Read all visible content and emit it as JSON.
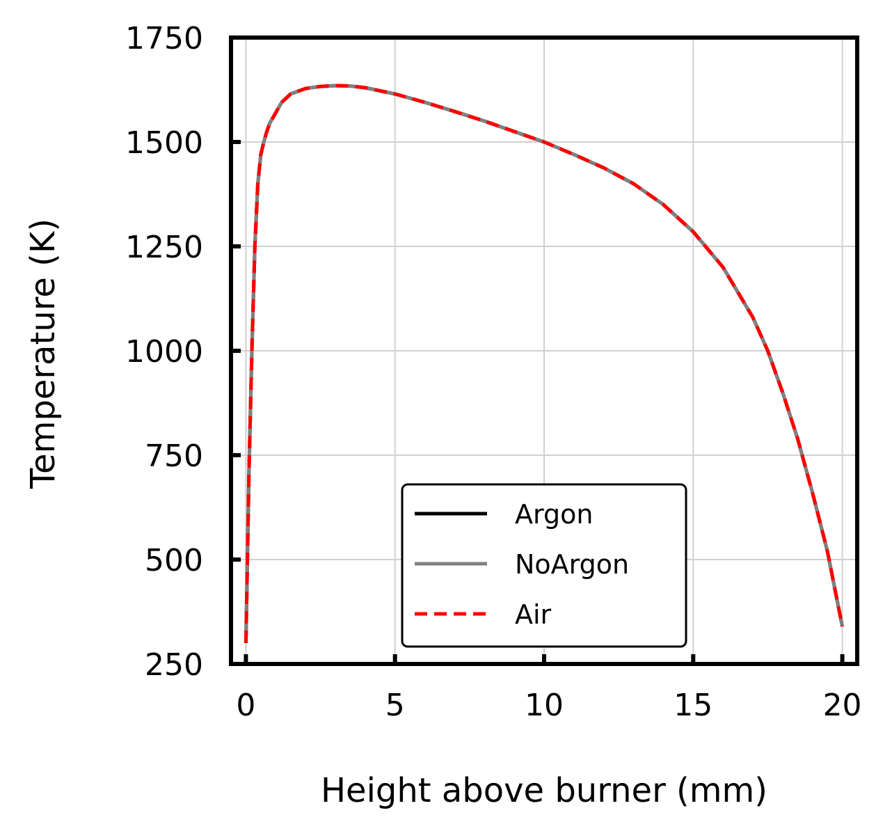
{
  "chart_data": {
    "type": "line",
    "title": "",
    "xlabel": "Height above burner (mm)",
    "ylabel": "Temperature (K)",
    "xlim": [
      0,
      20
    ],
    "ylim": [
      250,
      1750
    ],
    "xticks": [
      0,
      5,
      10,
      15,
      20
    ],
    "yticks": [
      250,
      500,
      750,
      1000,
      1250,
      1500,
      1750
    ],
    "grid": true,
    "legend_position": "lower-center",
    "series": [
      {
        "name": "Argon",
        "color": "#000000",
        "style": "solid",
        "x": [
          0,
          0.1,
          0.2,
          0.3,
          0.4,
          0.5,
          0.6,
          0.7,
          0.8,
          1.0,
          1.2,
          1.5,
          2.0,
          2.5,
          3.0,
          3.5,
          4.0,
          5.0,
          6.0,
          7.0,
          8.0,
          9.0,
          10.0,
          11.0,
          12.0,
          13.0,
          14.0,
          15.0,
          16.0,
          17.0,
          17.5,
          18.0,
          18.5,
          19.0,
          19.5,
          20.0
        ],
        "y": [
          300,
          700,
          1000,
          1250,
          1400,
          1470,
          1500,
          1525,
          1545,
          1570,
          1595,
          1615,
          1628,
          1633,
          1635,
          1634,
          1630,
          1615,
          1595,
          1573,
          1550,
          1525,
          1500,
          1470,
          1438,
          1400,
          1350,
          1285,
          1200,
          1080,
          1000,
          900,
          790,
          660,
          520,
          340
        ]
      },
      {
        "name": "NoArgon",
        "color": "#808080",
        "style": "solid",
        "x": [
          0,
          0.1,
          0.2,
          0.3,
          0.4,
          0.5,
          0.6,
          0.7,
          0.8,
          1.0,
          1.2,
          1.5,
          2.0,
          2.5,
          3.0,
          3.5,
          4.0,
          5.0,
          6.0,
          7.0,
          8.0,
          9.0,
          10.0,
          11.0,
          12.0,
          13.0,
          14.0,
          15.0,
          16.0,
          17.0,
          17.5,
          18.0,
          18.5,
          19.0,
          19.5,
          20.0
        ],
        "y": [
          300,
          700,
          1000,
          1250,
          1400,
          1470,
          1500,
          1525,
          1545,
          1570,
          1595,
          1615,
          1628,
          1633,
          1635,
          1634,
          1630,
          1615,
          1595,
          1573,
          1550,
          1525,
          1500,
          1470,
          1438,
          1400,
          1350,
          1285,
          1200,
          1080,
          1000,
          900,
          790,
          660,
          520,
          340
        ]
      },
      {
        "name": "Air",
        "color": "#ff0000",
        "style": "dashed",
        "x": [
          0,
          0.1,
          0.2,
          0.3,
          0.4,
          0.5,
          0.6,
          0.7,
          0.8,
          1.0,
          1.2,
          1.5,
          2.0,
          2.5,
          3.0,
          3.5,
          4.0,
          5.0,
          6.0,
          7.0,
          8.0,
          9.0,
          10.0,
          11.0,
          12.0,
          13.0,
          14.0,
          15.0,
          16.0,
          17.0,
          17.5,
          18.0,
          18.5,
          19.0,
          19.5,
          20.0
        ],
        "y": [
          300,
          700,
          1000,
          1250,
          1400,
          1470,
          1500,
          1525,
          1545,
          1570,
          1595,
          1615,
          1628,
          1633,
          1635,
          1634,
          1630,
          1615,
          1595,
          1573,
          1550,
          1525,
          1500,
          1470,
          1438,
          1400,
          1350,
          1285,
          1200,
          1080,
          1000,
          900,
          790,
          660,
          520,
          340
        ]
      }
    ]
  }
}
